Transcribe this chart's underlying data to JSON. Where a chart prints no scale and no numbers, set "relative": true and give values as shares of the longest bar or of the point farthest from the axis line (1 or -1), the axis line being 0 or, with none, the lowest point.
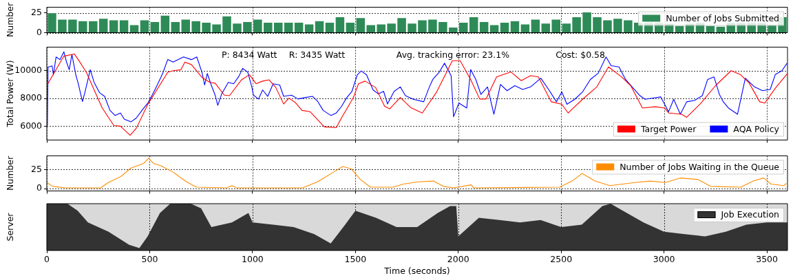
{
  "chart_data": [
    {
      "type": "bar",
      "ylabel": "Number",
      "x": [
        25,
        75,
        125,
        175,
        225,
        275,
        325,
        375,
        425,
        475,
        525,
        575,
        625,
        675,
        725,
        775,
        825,
        875,
        925,
        975,
        1025,
        1075,
        1125,
        1175,
        1225,
        1275,
        1325,
        1375,
        1425,
        1475,
        1525,
        1575,
        1625,
        1675,
        1725,
        1775,
        1825,
        1875,
        1925,
        1975,
        2025,
        2075,
        2125,
        2175,
        2225,
        2275,
        2325,
        2375,
        2425,
        2475,
        2525,
        2575,
        2625,
        2675,
        2725,
        2775,
        2825,
        2875,
        2925,
        2975,
        3025,
        3075,
        3125,
        3175,
        3225,
        3275,
        3325,
        3375,
        3425,
        3475,
        3525,
        3575
      ],
      "series": [
        {
          "name": "Number of Jobs Submitted",
          "color": "#2e8b57",
          "values": [
            25,
            17,
            17,
            15,
            15,
            18,
            16,
            16,
            10,
            16,
            14,
            22,
            14,
            17,
            15,
            13,
            11,
            21,
            12,
            14,
            17,
            13,
            13,
            13,
            13,
            11,
            15,
            13,
            20,
            13,
            19,
            10,
            11,
            12,
            19,
            12,
            16,
            17,
            14,
            7,
            13,
            20,
            14,
            10,
            13,
            15,
            11,
            17,
            12,
            17,
            12,
            20,
            26,
            20,
            16,
            18,
            16,
            13,
            13,
            13,
            12,
            9,
            12,
            13,
            9,
            8,
            13,
            13,
            13,
            13,
            10,
            20
          ]
        }
      ],
      "xlim": [
        0,
        3600
      ],
      "xticks": [
        0,
        500,
        1000,
        1500,
        2000,
        2500,
        3000,
        3500
      ],
      "ylim": [
        0,
        32
      ],
      "yticks": [
        0,
        25
      ],
      "grid": true,
      "legend": "top right",
      "tick_labels": "y"
    },
    {
      "type": "line",
      "ylabel": "Total Power (W)",
      "annotations": [
        "P: 8434 Watt",
        "R: 3435 Watt",
        "Avg. tracking error: 23.1%",
        "Cost: $0.58"
      ],
      "series": [
        {
          "name": "Target Power",
          "color": "#ff0000",
          "x": [
            4,
            83,
            134,
            153,
            192,
            269,
            326,
            358,
            405,
            435,
            492,
            588,
            614,
            652,
            671,
            703,
            754,
            793,
            818,
            863,
            888,
            946,
            985,
            1017,
            1049,
            1081,
            1113,
            1151,
            1177,
            1209,
            1240,
            1279,
            1349,
            1407,
            1432,
            1490,
            1515,
            1547,
            1598,
            1642,
            1667,
            1718,
            1768,
            1825,
            1895,
            1971,
            2009,
            2060,
            2104,
            2135,
            2186,
            2256,
            2306,
            2351,
            2389,
            2452,
            2503,
            2534,
            2604,
            2673,
            2730,
            2794,
            2838,
            2895,
            2958,
            3003,
            3022,
            3085,
            3110,
            3180,
            3250,
            3326,
            3370,
            3414,
            3465,
            3490,
            3541,
            3598
          ],
          "values": [
            9030,
            11050,
            11200,
            10800,
            9890,
            7320,
            6040,
            6000,
            5340,
            5850,
            7600,
            9890,
            10000,
            10070,
            10620,
            10440,
            9520,
            9160,
            9100,
            8240,
            8200,
            9340,
            9710,
            9060,
            9250,
            9340,
            8790,
            7600,
            8020,
            7690,
            7140,
            7050,
            5950,
            5890,
            6590,
            8060,
            9060,
            9250,
            8790,
            7430,
            7250,
            8070,
            7350,
            6950,
            8470,
            10720,
            10720,
            9370,
            7960,
            7960,
            9550,
            9910,
            9280,
            9640,
            9550,
            7760,
            7580,
            6950,
            7940,
            8830,
            10270,
            9550,
            8920,
            7310,
            7400,
            7310,
            6950,
            6860,
            6640,
            7670,
            8920,
            10000,
            9730,
            9100,
            7760,
            7670,
            8740,
            9770
          ]
        },
        {
          "name": "AQA Policy",
          "color": "#0000ff",
          "x": [
            3,
            6,
            26,
            32,
            45,
            64,
            83,
            96,
            109,
            122,
            141,
            153,
            173,
            185,
            211,
            230,
            256,
            281,
            307,
            332,
            358,
            377,
            409,
            435,
            467,
            492,
            512,
            537,
            563,
            588,
            614,
            639,
            665,
            703,
            729,
            754,
            767,
            780,
            799,
            818,
            831,
            850,
            882,
            908,
            934,
            952,
            977,
            997,
            1004,
            1029,
            1049,
            1074,
            1100,
            1132,
            1151,
            1189,
            1221,
            1253,
            1292,
            1317,
            1343,
            1381,
            1407,
            1432,
            1458,
            1483,
            1509,
            1528,
            1554,
            1586,
            1611,
            1637,
            1656,
            1688,
            1718,
            1743,
            1781,
            1832,
            1857,
            1876,
            1908,
            1933,
            1965,
            1977,
            2003,
            2041,
            2060,
            2085,
            2110,
            2142,
            2173,
            2205,
            2237,
            2275,
            2313,
            2351,
            2401,
            2439,
            2477,
            2503,
            2528,
            2566,
            2604,
            2642,
            2680,
            2718,
            2743,
            2781,
            2813,
            2845,
            2883,
            2908,
            2946,
            2984,
            3022,
            3047,
            3079,
            3110,
            3148,
            3186,
            3212,
            3243,
            3269,
            3288,
            3313,
            3357,
            3395,
            3440,
            3478,
            3516,
            3541,
            3573,
            3598
          ],
          "values": [
            6040,
            10260,
            10350,
            9700,
            10990,
            10800,
            11360,
            10620,
            10070,
            11170,
            9700,
            9060,
            7780,
            8420,
            10070,
            9160,
            8420,
            8150,
            7140,
            6770,
            6950,
            6500,
            6310,
            6590,
            7230,
            7690,
            8240,
            8970,
            9800,
            10810,
            10620,
            10810,
            10990,
            10800,
            10990,
            9890,
            8970,
            9800,
            8970,
            8240,
            7500,
            8330,
            9160,
            9060,
            9610,
            10170,
            9890,
            8790,
            8240,
            7960,
            8610,
            8150,
            9060,
            8970,
            8150,
            8240,
            7960,
            8060,
            8150,
            7780,
            7140,
            6770,
            6950,
            7420,
            8060,
            8510,
            9700,
            9980,
            9700,
            8610,
            8330,
            8510,
            7600,
            8510,
            8830,
            8200,
            7940,
            7760,
            8740,
            9370,
            9910,
            10540,
            9640,
            6680,
            7670,
            7310,
            10090,
            9370,
            8290,
            8830,
            6860,
            9010,
            8560,
            8920,
            8650,
            8830,
            9460,
            8650,
            7760,
            8470,
            7580,
            7940,
            8470,
            9370,
            9820,
            10990,
            10360,
            10270,
            9370,
            8830,
            8200,
            7940,
            8030,
            8110,
            7040,
            7940,
            6860,
            7760,
            7850,
            8200,
            9370,
            9550,
            8290,
            7760,
            7310,
            6860,
            9460,
            8830,
            8560,
            8650,
            9730,
            10000,
            10540
          ]
        }
      ],
      "xlim": [
        0,
        3600
      ],
      "xticks": [
        0,
        500,
        1000,
        1500,
        2000,
        2500,
        3000,
        3500
      ],
      "ylim": [
        5000,
        11700
      ],
      "yticks": [
        6000,
        8000,
        10000
      ],
      "grid": true,
      "legend": "bottom right",
      "tick_labels": "y"
    },
    {
      "type": "line",
      "ylabel": "Number",
      "series": [
        {
          "name": "Number of Jobs Waiting in the Queue",
          "color": "#ff8c00",
          "x": [
            0,
            29,
            91,
            262,
            299,
            360,
            409,
            470,
            495,
            519,
            556,
            617,
            679,
            728,
            875,
            899,
            924,
            1242,
            1316,
            1389,
            1438,
            1480,
            1524,
            1573,
            1683,
            1732,
            1806,
            1879,
            1928,
            1977,
            2063,
            2075,
            2492,
            2553,
            2602,
            2664,
            2737,
            2859,
            2933,
            3006,
            3079,
            3165,
            3226,
            3373,
            3434,
            3484,
            3520,
            3582,
            3594
          ],
          "values": [
            8,
            3,
            1,
            1,
            8,
            16,
            27,
            33,
            40,
            33,
            30,
            21,
            9,
            2,
            1,
            4,
            1,
            1,
            9,
            21,
            29,
            26,
            12,
            2,
            2,
            6,
            9,
            10,
            3,
            1,
            5,
            1,
            2,
            10,
            20,
            10,
            4,
            8,
            10,
            8,
            14,
            12,
            3,
            2,
            10,
            14,
            6,
            4,
            7
          ]
        }
      ],
      "xlim": [
        0,
        3600
      ],
      "xticks": [
        0,
        500,
        1000,
        1500,
        2000,
        2500,
        3000,
        3500
      ],
      "ylim": [
        -3,
        43
      ],
      "yticks": [
        0,
        25
      ],
      "grid": true,
      "legend": "top right",
      "tick_labels": "y"
    },
    {
      "type": "area",
      "relative": true,
      "ylabel": "Server",
      "xlabel": "Time (seconds)",
      "x": [
        0,
        100,
        150,
        200,
        300,
        400,
        450,
        490,
        550,
        600,
        700,
        750,
        800,
        900,
        980,
        1000,
        1100,
        1200,
        1300,
        1380,
        1450,
        1500,
        1600,
        1700,
        1800,
        1900,
        1960,
        1990,
        2000,
        2100,
        2200,
        2300,
        2400,
        2500,
        2600,
        2700,
        2740,
        2800,
        2900,
        3000,
        3100,
        3200,
        3300,
        3400,
        3500,
        3600
      ],
      "series": [
        {
          "name": "Job Execution",
          "color": "#333333",
          "values": [
            1,
            1,
            0.85,
            0.6,
            0.4,
            0.12,
            0.05,
            0.3,
            0.8,
            1,
            1,
            0.9,
            0.5,
            0.6,
            0.8,
            0.6,
            0.55,
            0.5,
            0.35,
            0.15,
            0.55,
            0.85,
            0.7,
            0.5,
            0.5,
            0.8,
            0.95,
            0.95,
            0.3,
            0.7,
            0.65,
            0.6,
            0.65,
            0.5,
            0.55,
            0.95,
            1,
            0.85,
            0.6,
            0.4,
            0.35,
            0.3,
            0.4,
            0.55,
            0.6,
            0.6
          ]
        }
      ],
      "xlim": [
        0,
        3600
      ],
      "xticks": [
        0,
        500,
        1000,
        1500,
        2000,
        2500,
        3000,
        3500
      ],
      "grid": "x",
      "legend": "top right",
      "tick_labels": "x"
    }
  ]
}
